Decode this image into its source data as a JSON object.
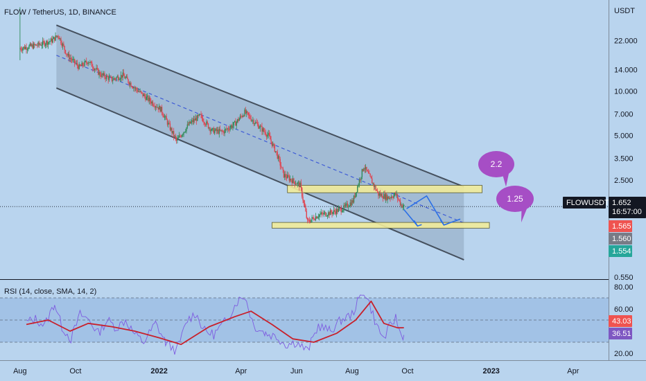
{
  "header": {
    "title": "FLOW / TetherUS, 1D, BINANCE",
    "currency": "USDT",
    "rsi_label": "RSI (14, close, SMA, 14, 2)"
  },
  "colors": {
    "background": "#b9d4ee",
    "channel_fill": "#8fa6c0",
    "channel_line": "#45505e",
    "zone_fill": "#f1eb99",
    "zone_stroke": "#5a5a30",
    "candle_up": "#2e8b57",
    "candle_down": "#e0434f",
    "midline": "#3f5cd6",
    "arrow": "#2a6fe6",
    "bubble": "#a64ec5",
    "rsi_line": "#7e5be0",
    "rsi_ma": "#c8202b",
    "rsi_band": "#8fb2e0",
    "badge_dark": "#131722",
    "badge_red": "#ef5350",
    "badge_gray": "#787b86",
    "badge_green": "#26a69a",
    "badge_rsi_purple": "#7e57c2"
  },
  "chart_data": [
    {
      "type": "candlestick",
      "title": "FLOW / TetherUS, 1D, BINANCE",
      "y_scale": "log",
      "ylim": [
        0.55,
        38
      ],
      "y_ticks": [
        "22.000",
        "14.000",
        "10.000",
        "7.000",
        "5.000",
        "3.500",
        "2.500",
        "0.550"
      ],
      "x_ticks": [
        "Aug",
        "Oct",
        "2022",
        "Apr",
        "Jun",
        "Aug",
        "Oct",
        "2023",
        "Apr"
      ],
      "x_ticks_bold": [
        "2022",
        "2023"
      ],
      "xlim": [
        "2021-07-10",
        "2023-05-10"
      ],
      "close_series": [
        [
          "2021-08-01",
          19.5
        ],
        [
          "2021-08-20",
          20.5
        ],
        [
          "2021-09-05",
          22.0
        ],
        [
          "2021-09-12",
          24.0
        ],
        [
          "2021-09-22",
          17.5
        ],
        [
          "2021-10-05",
          14.5
        ],
        [
          "2021-10-15",
          16.0
        ],
        [
          "2021-10-28",
          13.0
        ],
        [
          "2021-11-10",
          12.0
        ],
        [
          "2021-11-22",
          12.8
        ],
        [
          "2021-12-05",
          10.5
        ],
        [
          "2021-12-18",
          9.0
        ],
        [
          "2022-01-03",
          7.5
        ],
        [
          "2022-01-20",
          4.6
        ],
        [
          "2022-02-03",
          6.0
        ],
        [
          "2022-02-15",
          6.8
        ],
        [
          "2022-02-28",
          5.4
        ],
        [
          "2022-03-12",
          5.3
        ],
        [
          "2022-03-25",
          6.0
        ],
        [
          "2022-04-05",
          7.2
        ],
        [
          "2022-04-18",
          6.0
        ],
        [
          "2022-05-01",
          5.0
        ],
        [
          "2022-05-10",
          3.8
        ],
        [
          "2022-05-18",
          2.7
        ],
        [
          "2022-06-05",
          2.3
        ],
        [
          "2022-06-13",
          1.3
        ],
        [
          "2022-06-25",
          1.45
        ],
        [
          "2022-07-08",
          1.5
        ],
        [
          "2022-07-22",
          1.6
        ],
        [
          "2022-08-02",
          1.8
        ],
        [
          "2022-08-10",
          2.6
        ],
        [
          "2022-08-14",
          3.1
        ],
        [
          "2022-08-22",
          2.5
        ],
        [
          "2022-08-30",
          2.0
        ],
        [
          "2022-09-10",
          1.9
        ],
        [
          "2022-09-18",
          2.0
        ],
        [
          "2022-09-24",
          1.7
        ],
        [
          "2022-09-27",
          1.652
        ]
      ],
      "current_price": "1.652",
      "countdown": "16:57:00",
      "ticker": "FLOWUSDT",
      "price_badges": [
        "1.565",
        "1.560",
        "1.554"
      ],
      "annotations": [
        "2.2",
        "1.25"
      ],
      "drawings": {
        "descending_channel": {
          "upper_start": [
            "2021-09-10",
            28
          ],
          "upper_end": [
            "2022-12-02",
            2.25
          ],
          "lower_start": [
            "2021-09-10",
            10.5
          ],
          "lower_end": [
            "2022-12-02",
            0.72
          ]
        },
        "midline_start": [
          "2021-09-10",
          17.5
        ],
        "midline_end": [
          "2022-12-02",
          1.28
        ],
        "resistance_zone": {
          "from": "2022-05-22",
          "to": "2022-12-22",
          "low": 2.05,
          "high": 2.3
        },
        "support_zone": {
          "from": "2022-05-05",
          "to": "2022-12-30",
          "low": 1.18,
          "high": 1.29
        }
      }
    },
    {
      "type": "line",
      "title": "RSI (14, close, SMA, 14, 2)",
      "ylim": [
        15,
        85
      ],
      "y_ticks": [
        "80.00",
        "60.00",
        "20.00"
      ],
      "levels": [
        70,
        50,
        30
      ],
      "series": [
        {
          "values": [
            [
              "2021-08-08",
              48
            ],
            [
              "2021-08-18",
              51
            ],
            [
              "2021-08-28",
              45
            ],
            [
              "2021-09-08",
              65
            ],
            [
              "2021-09-16",
              44
            ],
            [
              "2021-09-26",
              33
            ],
            [
              "2021-10-06",
              55
            ],
            [
              "2021-10-16",
              50
            ],
            [
              "2021-10-26",
              38
            ],
            [
              "2021-11-05",
              50
            ],
            [
              "2021-11-15",
              43
            ],
            [
              "2021-11-25",
              50
            ],
            [
              "2021-12-05",
              37
            ],
            [
              "2021-12-15",
              30
            ],
            [
              "2021-12-28",
              47
            ],
            [
              "2022-01-08",
              30
            ],
            [
              "2022-01-20",
              22
            ],
            [
              "2022-02-01",
              50
            ],
            [
              "2022-02-10",
              56
            ],
            [
              "2022-02-20",
              40
            ],
            [
              "2022-03-02",
              37
            ],
            [
              "2022-03-15",
              49
            ],
            [
              "2022-03-28",
              67
            ],
            [
              "2022-04-05",
              72
            ],
            [
              "2022-04-15",
              45
            ],
            [
              "2022-04-28",
              38
            ],
            [
              "2022-05-10",
              35
            ],
            [
              "2022-05-20",
              28
            ],
            [
              "2022-06-01",
              30
            ],
            [
              "2022-06-13",
              22
            ],
            [
              "2022-06-25",
              45
            ],
            [
              "2022-07-08",
              40
            ],
            [
              "2022-07-20",
              50
            ],
            [
              "2022-08-01",
              55
            ],
            [
              "2022-08-08",
              68
            ],
            [
              "2022-08-14",
              76
            ],
            [
              "2022-08-20",
              65
            ],
            [
              "2022-08-28",
              45
            ],
            [
              "2022-09-05",
              33
            ],
            [
              "2022-09-12",
              45
            ],
            [
              "2022-09-18",
              52
            ],
            [
              "2022-09-24",
              36
            ],
            [
              "2022-09-27",
              36.51
            ]
          ]
        },
        {
          "values": [
            [
              "2021-08-08",
              46
            ],
            [
              "2021-09-01",
              50
            ],
            [
              "2021-09-25",
              40
            ],
            [
              "2021-10-15",
              47
            ],
            [
              "2021-11-10",
              44
            ],
            [
              "2021-12-05",
              40
            ],
            [
              "2022-01-01",
              34
            ],
            [
              "2022-01-25",
              28
            ],
            [
              "2022-02-25",
              44
            ],
            [
              "2022-03-25",
              53
            ],
            [
              "2022-04-12",
              58
            ],
            [
              "2022-05-05",
              46
            ],
            [
              "2022-05-28",
              33
            ],
            [
              "2022-06-20",
              30
            ],
            [
              "2022-07-15",
              38
            ],
            [
              "2022-08-05",
              50
            ],
            [
              "2022-08-22",
              67
            ],
            [
              "2022-09-05",
              47
            ],
            [
              "2022-09-20",
              43
            ],
            [
              "2022-09-27",
              43.03
            ]
          ]
        }
      ],
      "value_badges": [
        "43.03",
        "36.51"
      ]
    }
  ]
}
